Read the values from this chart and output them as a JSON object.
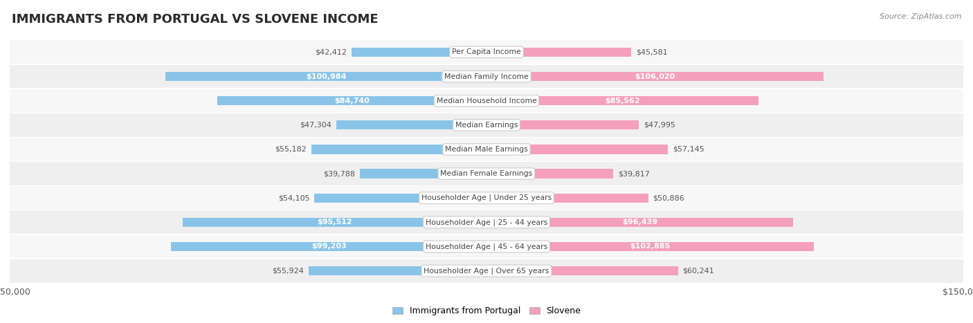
{
  "title": "IMMIGRANTS FROM PORTUGAL VS SLOVENE INCOME",
  "source": "Source: ZipAtlas.com",
  "categories": [
    "Per Capita Income",
    "Median Family Income",
    "Median Household Income",
    "Median Earnings",
    "Median Male Earnings",
    "Median Female Earnings",
    "Householder Age | Under 25 years",
    "Householder Age | 25 - 44 years",
    "Householder Age | 45 - 64 years",
    "Householder Age | Over 65 years"
  ],
  "portugal_values": [
    42412,
    100984,
    84740,
    47304,
    55182,
    39788,
    54105,
    95512,
    99203,
    55924
  ],
  "slovene_values": [
    45581,
    106020,
    85562,
    47995,
    57145,
    39817,
    50886,
    96439,
    102885,
    60241
  ],
  "portugal_labels": [
    "$42,412",
    "$100,984",
    "$84,740",
    "$47,304",
    "$55,182",
    "$39,788",
    "$54,105",
    "$95,512",
    "$99,203",
    "$55,924"
  ],
  "slovene_labels": [
    "$45,581",
    "$106,020",
    "$85,562",
    "$47,995",
    "$57,145",
    "$39,817",
    "$50,886",
    "$96,439",
    "$102,885",
    "$60,241"
  ],
  "portugal_color": "#89C4E8",
  "slovene_color": "#F4A0BC",
  "row_bg_color_even": "#F7F7F7",
  "row_bg_color_odd": "#EFEFEF",
  "max_value": 150000,
  "legend_portugal": "Immigrants from Portugal",
  "legend_slovene": "Slovene",
  "title_color": "#2B2B2B",
  "source_color": "#888888",
  "label_color_inside": "#FFFFFF",
  "label_color_outside": "#555555",
  "center_label_bg": "#FFFFFF",
  "center_label_border": "#CCCCCC",
  "center_label_color": "#444444",
  "bar_height": 0.38,
  "inside_threshold": 65000,
  "title_fontsize": 13,
  "label_fontsize": 8,
  "cat_fontsize": 7.8,
  "tick_fontsize": 9
}
